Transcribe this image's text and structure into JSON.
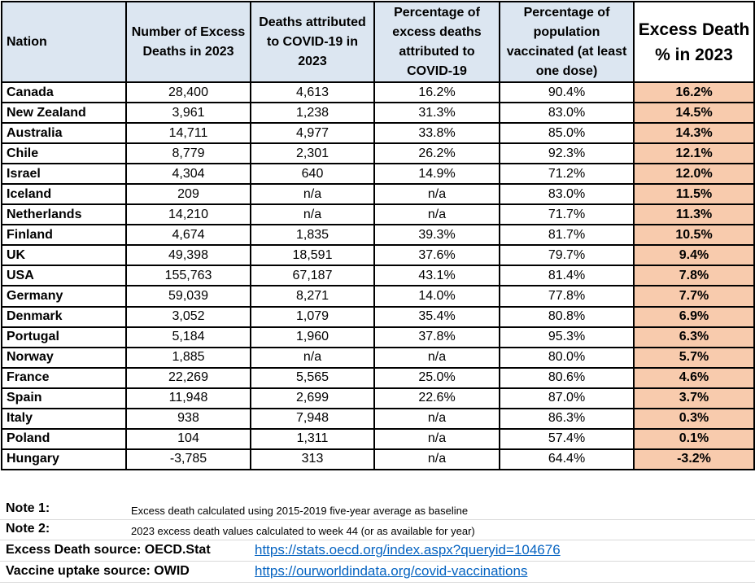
{
  "table": {
    "headers": [
      "Nation",
      "Number of Excess Deaths in 2023",
      "Deaths attributed to COVID-19 in 2023",
      "Percentage of excess deaths attributed to COVID-19",
      "Percentage of population vaccinated (at least one dose)",
      "Excess Death % in 2023"
    ],
    "rows": [
      [
        "Canada",
        "28,400",
        "4,613",
        "16.2%",
        "90.4%",
        "16.2%"
      ],
      [
        "New Zealand",
        "3,961",
        "1,238",
        "31.3%",
        "83.0%",
        "14.5%"
      ],
      [
        "Australia",
        "14,711",
        "4,977",
        "33.8%",
        "85.0%",
        "14.3%"
      ],
      [
        "Chile",
        "8,779",
        "2,301",
        "26.2%",
        "92.3%",
        "12.1%"
      ],
      [
        "Israel",
        "4,304",
        "640",
        "14.9%",
        "71.2%",
        "12.0%"
      ],
      [
        "Iceland",
        "209",
        "n/a",
        "n/a",
        "83.0%",
        "11.5%"
      ],
      [
        "Netherlands",
        "14,210",
        "n/a",
        "n/a",
        "71.7%",
        "11.3%"
      ],
      [
        "Finland",
        "4,674",
        "1,835",
        "39.3%",
        "81.7%",
        "10.5%"
      ],
      [
        "UK",
        "49,398",
        "18,591",
        "37.6%",
        "79.7%",
        "9.4%"
      ],
      [
        "USA",
        "155,763",
        "67,187",
        "43.1%",
        "81.4%",
        "7.8%"
      ],
      [
        "Germany",
        "59,039",
        "8,271",
        "14.0%",
        "77.8%",
        "7.7%"
      ],
      [
        "Denmark",
        "3,052",
        "1,079",
        "35.4%",
        "80.8%",
        "6.9%"
      ],
      [
        "Portugal",
        "5,184",
        "1,960",
        "37.8%",
        "95.3%",
        "6.3%"
      ],
      [
        "Norway",
        "1,885",
        "n/a",
        "n/a",
        "80.0%",
        "5.7%"
      ],
      [
        "France",
        "22,269",
        "5,565",
        "25.0%",
        "80.6%",
        "4.6%"
      ],
      [
        "Spain",
        "11,948",
        "2,699",
        "22.6%",
        "87.0%",
        "3.7%"
      ],
      [
        "Italy",
        "938",
        "7,948",
        "n/a",
        "86.3%",
        "0.3%"
      ],
      [
        "Poland",
        "104",
        "1,311",
        "n/a",
        "57.4%",
        "0.1%"
      ],
      [
        "Hungary",
        "-3,785",
        "313",
        "n/a",
        "64.4%",
        "-3.2%"
      ]
    ]
  },
  "notes": [
    {
      "label": "Note 1:",
      "text": "Excess death calculated using 2015-2019 five-year average as baseline"
    },
    {
      "label": "Note 2:",
      "text": "2023 excess death values calculated to week 44 (or as available for year)"
    }
  ],
  "sources": [
    {
      "label": "Excess Death source: OECD.Stat",
      "link": "https://stats.oecd.org/index.aspx?queryid=104676"
    },
    {
      "label": "Vaccine uptake source:  OWID",
      "link": "https://ourworldindata.org/covid-vaccinations"
    }
  ],
  "colors": {
    "header_bg": "#dce6f1",
    "excess_column_bg": "#f8cbad",
    "link": "#0563c1"
  }
}
